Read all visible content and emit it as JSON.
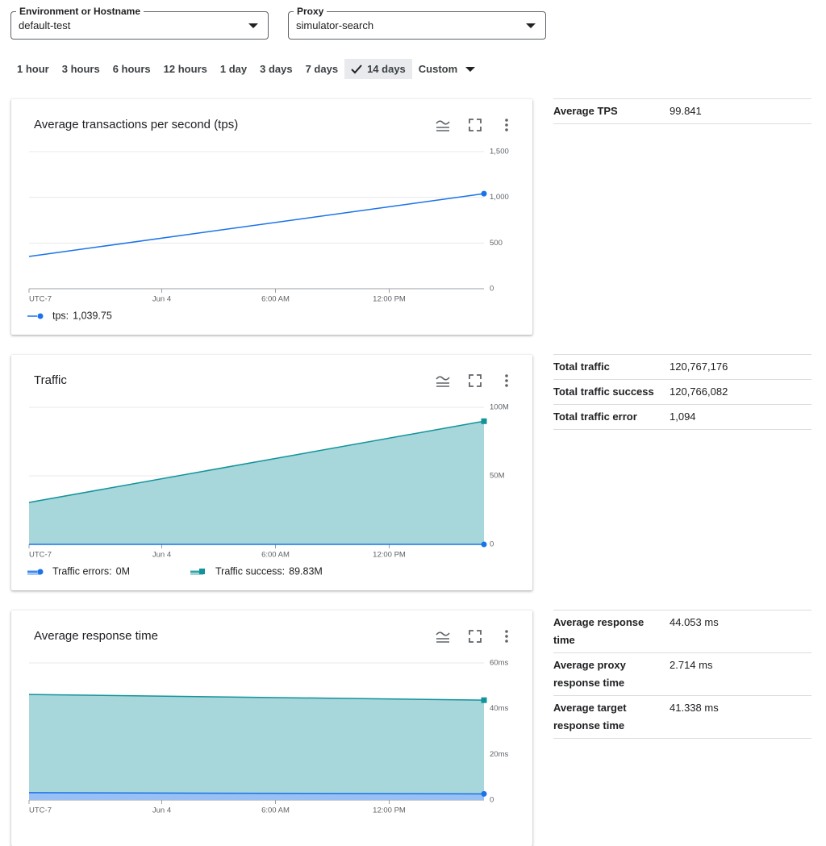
{
  "filters": [
    {
      "label": "Environment or Hostname",
      "value": "default-test"
    },
    {
      "label": "Proxy",
      "value": "simulator-search"
    }
  ],
  "time_ranges": [
    {
      "label": "1 hour",
      "selected": false
    },
    {
      "label": "3 hours",
      "selected": false
    },
    {
      "label": "6 hours",
      "selected": false
    },
    {
      "label": "12 hours",
      "selected": false
    },
    {
      "label": "1 day",
      "selected": false
    },
    {
      "label": "3 days",
      "selected": false
    },
    {
      "label": "7 days",
      "selected": false
    },
    {
      "label": "14 days",
      "selected": true
    },
    {
      "label": "Custom",
      "selected": false
    }
  ],
  "chart_data": [
    {
      "type": "line",
      "title": "Average transactions per second (tps)",
      "x": [
        -7,
        17
      ],
      "xlim": [
        -7,
        17
      ],
      "xticks": [
        {
          "value": -7,
          "label": "UTC-7"
        },
        {
          "value": 0,
          "label": "Jun 4"
        },
        {
          "value": 6,
          "label": "6:00 AM"
        },
        {
          "value": 12,
          "label": "12:00 PM"
        }
      ],
      "ylim": [
        0,
        1500
      ],
      "yticks": [
        0,
        500,
        {
          "value": 1000,
          "label": "1,000"
        },
        {
          "value": 1500,
          "label": "1,500"
        }
      ],
      "grid": true,
      "series": [
        {
          "name": "tps:",
          "color": "#1a73e8",
          "marker": "circle",
          "values": [
            353,
            1039.75
          ],
          "legend_label": "1,039.75"
        }
      ]
    },
    {
      "type": "area",
      "title": "Traffic",
      "stacked": true,
      "x": [
        -7,
        17
      ],
      "xlim": [
        -7,
        17
      ],
      "xticks": [
        {
          "value": -7,
          "label": "UTC-7"
        },
        {
          "value": 0,
          "label": "Jun 4"
        },
        {
          "value": 6,
          "label": "6:00 AM"
        },
        {
          "value": 12,
          "label": "12:00 PM"
        }
      ],
      "ylim": [
        0,
        100000000
      ],
      "yticks": [
        0,
        {
          "value": 50000000,
          "label": "50M"
        },
        {
          "value": 100000000,
          "label": "100M"
        }
      ],
      "grid": true,
      "series": [
        {
          "name": "Traffic errors:",
          "color": "#1a73e8",
          "marker": "circle",
          "values": [
            0,
            0
          ],
          "legend_label": "0M"
        },
        {
          "name": "Traffic success:",
          "color": "#12939a",
          "marker": "square",
          "values": [
            30600000,
            89830000
          ],
          "legend_label": "89.83M"
        }
      ]
    },
    {
      "type": "area",
      "title": "Average response time",
      "stacked": true,
      "x": [
        -7,
        17
      ],
      "xlim": [
        -7,
        17
      ],
      "xticks": [
        {
          "value": -7,
          "label": "UTC-7"
        },
        {
          "value": 0,
          "label": "Jun 4"
        },
        {
          "value": 6,
          "label": "6:00 AM"
        },
        {
          "value": 12,
          "label": "12:00 PM"
        }
      ],
      "ylim": [
        0,
        60
      ],
      "yticks": [
        0,
        {
          "value": 20,
          "label": "20ms"
        },
        {
          "value": 40,
          "label": "40ms"
        },
        {
          "value": 60,
          "label": "60ms"
        }
      ],
      "grid": true,
      "series": [
        {
          "color": "#1a73e8",
          "marker": "circle",
          "values": [
            3.2,
            2.7
          ]
        },
        {
          "color": "#12939a",
          "marker": "square",
          "values": [
            43,
            41
          ]
        }
      ]
    }
  ],
  "summaries": [
    {
      "rows": [
        [
          "Average TPS",
          "99.841"
        ]
      ]
    },
    {
      "rows": [
        [
          "Total traffic",
          "120,767,176"
        ],
        [
          "Total traffic success",
          "120,766,082"
        ],
        [
          "Total traffic error",
          "1,094"
        ]
      ]
    },
    {
      "rows": [
        [
          "Average response time",
          "44.053 ms"
        ],
        [
          "Average proxy response time",
          "2.714 ms"
        ],
        [
          "Average target response time",
          "41.338 ms"
        ]
      ]
    }
  ]
}
